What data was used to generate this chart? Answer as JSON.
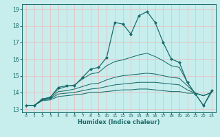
{
  "xlabel": "Humidex (Indice chaleur)",
  "xlim": [
    -0.5,
    23.5
  ],
  "ylim": [
    12.8,
    19.3
  ],
  "yticks": [
    13,
    14,
    15,
    16,
    17,
    18,
    19
  ],
  "xticks": [
    0,
    1,
    2,
    3,
    4,
    5,
    6,
    7,
    8,
    9,
    10,
    11,
    12,
    13,
    14,
    15,
    16,
    17,
    18,
    19,
    20,
    21,
    22,
    23
  ],
  "bg_color": "#c8eded",
  "grid_color": "#e8c0c0",
  "line_color": "#1a6b6b",
  "curves": [
    [
      13.2,
      13.2,
      13.6,
      13.7,
      14.3,
      14.4,
      14.4,
      14.9,
      15.4,
      15.5,
      16.1,
      18.2,
      18.1,
      17.5,
      18.6,
      18.85,
      18.2,
      17.0,
      16.0,
      15.8,
      14.6,
      13.9,
      13.2,
      14.1
    ],
    [
      13.2,
      13.2,
      13.6,
      13.7,
      14.2,
      14.35,
      14.45,
      14.8,
      15.1,
      15.2,
      15.6,
      15.85,
      15.95,
      16.1,
      16.25,
      16.35,
      16.15,
      15.9,
      15.6,
      15.5,
      14.6,
      13.9,
      13.2,
      14.0
    ],
    [
      13.2,
      13.2,
      13.55,
      13.65,
      14.05,
      14.1,
      14.2,
      14.35,
      14.5,
      14.55,
      14.75,
      14.9,
      15.0,
      15.05,
      15.1,
      15.15,
      15.1,
      15.0,
      14.9,
      14.85,
      14.4,
      13.95,
      13.8,
      14.0
    ],
    [
      13.2,
      13.2,
      13.55,
      13.6,
      13.9,
      13.95,
      14.0,
      14.1,
      14.2,
      14.25,
      14.35,
      14.45,
      14.5,
      14.55,
      14.6,
      14.6,
      14.6,
      14.55,
      14.5,
      14.45,
      14.15,
      13.95,
      13.8,
      14.0
    ],
    [
      13.2,
      13.2,
      13.5,
      13.55,
      13.75,
      13.8,
      13.85,
      13.9,
      14.0,
      14.0,
      14.05,
      14.1,
      14.15,
      14.15,
      14.2,
      14.2,
      14.15,
      14.1,
      14.05,
      14.05,
      13.95,
      13.95,
      13.8,
      14.0
    ]
  ]
}
